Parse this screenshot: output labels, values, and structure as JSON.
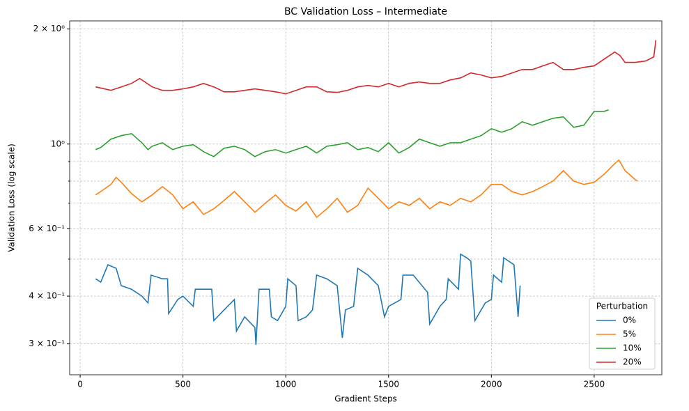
{
  "chart_data": {
    "type": "line",
    "title": "BC Validation Loss – Intermediate",
    "x_label": "Gradient Steps",
    "y_label": "Validation Loss (log scale)",
    "log_y": true,
    "grid": true,
    "legend_title": "Perturbation",
    "legend_position": "lower right",
    "xlim": [
      -51,
      2829
    ],
    "ylim": [
      0.249,
      2.1
    ],
    "xticks": [
      0,
      500,
      1000,
      1500,
      2000,
      2500
    ],
    "yticks": [
      {
        "value": 2,
        "label": "2 × 10⁰"
      },
      {
        "value": 1,
        "label": "10⁰"
      },
      {
        "value": 0.6,
        "label": "6 × 10⁻¹"
      },
      {
        "value": 0.4,
        "label": "4 × 10⁻¹"
      },
      {
        "value": 0.3,
        "label": "3 × 10⁻¹"
      }
    ],
    "yminor_ticks": [
      0.5,
      0.7,
      0.8,
      0.9
    ],
    "series": [
      {
        "name": "0%",
        "color": "#1f77b4",
        "x": [
          75,
          100,
          135,
          175,
          200,
          250,
          300,
          330,
          345,
          400,
          425,
          430,
          475,
          500,
          550,
          560,
          600,
          640,
          650,
          700,
          750,
          760,
          800,
          850,
          855,
          870,
          920,
          930,
          960,
          1000,
          1010,
          1050,
          1060,
          1100,
          1130,
          1150,
          1200,
          1250,
          1275,
          1290,
          1330,
          1350,
          1400,
          1450,
          1480,
          1500,
          1560,
          1570,
          1620,
          1690,
          1700,
          1750,
          1780,
          1790,
          1840,
          1850,
          1880,
          1900,
          1920,
          1970,
          2000,
          2010,
          2050,
          2060,
          2110,
          2130,
          2140
        ],
        "values": [
          0.444,
          0.435,
          0.483,
          0.473,
          0.426,
          0.417,
          0.4,
          0.384,
          0.454,
          0.444,
          0.444,
          0.36,
          0.392,
          0.4,
          0.376,
          0.417,
          0.417,
          0.417,
          0.345,
          0.368,
          0.392,
          0.324,
          0.353,
          0.331,
          0.298,
          0.417,
          0.417,
          0.353,
          0.345,
          0.376,
          0.444,
          0.426,
          0.345,
          0.353,
          0.368,
          0.454,
          0.444,
          0.426,
          0.311,
          0.368,
          0.376,
          0.473,
          0.454,
          0.426,
          0.353,
          0.376,
          0.392,
          0.454,
          0.454,
          0.409,
          0.338,
          0.376,
          0.392,
          0.444,
          0.417,
          0.515,
          0.504,
          0.494,
          0.345,
          0.384,
          0.392,
          0.454,
          0.435,
          0.504,
          0.483,
          0.353,
          0.426
        ]
      },
      {
        "name": "5%",
        "color": "#ff7f0e",
        "x": [
          75,
          100,
          150,
          175,
          200,
          250,
          300,
          350,
          400,
          450,
          500,
          550,
          600,
          650,
          700,
          750,
          800,
          850,
          900,
          950,
          1000,
          1050,
          1100,
          1150,
          1200,
          1250,
          1300,
          1350,
          1400,
          1450,
          1500,
          1550,
          1600,
          1650,
          1700,
          1750,
          1800,
          1850,
          1900,
          1950,
          2000,
          2050,
          2100,
          2150,
          2200,
          2250,
          2300,
          2350,
          2400,
          2450,
          2500,
          2550,
          2600,
          2620,
          2650,
          2700,
          2710
        ],
        "values": [
          0.736,
          0.751,
          0.784,
          0.818,
          0.794,
          0.742,
          0.706,
          0.736,
          0.774,
          0.736,
          0.677,
          0.706,
          0.654,
          0.677,
          0.712,
          0.751,
          0.706,
          0.663,
          0.7,
          0.736,
          0.691,
          0.668,
          0.706,
          0.643,
          0.677,
          0.721,
          0.663,
          0.691,
          0.767,
          0.721,
          0.677,
          0.706,
          0.691,
          0.721,
          0.677,
          0.706,
          0.691,
          0.721,
          0.706,
          0.736,
          0.784,
          0.784,
          0.751,
          0.736,
          0.751,
          0.774,
          0.8,
          0.852,
          0.8,
          0.784,
          0.794,
          0.835,
          0.889,
          0.908,
          0.852,
          0.807,
          0.8
        ]
      },
      {
        "name": "10%",
        "color": "#2ca02c",
        "x": [
          75,
          100,
          150,
          200,
          250,
          300,
          330,
          350,
          400,
          450,
          500,
          550,
          600,
          650,
          700,
          750,
          800,
          850,
          900,
          950,
          1000,
          1050,
          1100,
          1150,
          1200,
          1250,
          1300,
          1350,
          1400,
          1450,
          1500,
          1550,
          1600,
          1650,
          1700,
          1750,
          1800,
          1850,
          1900,
          1950,
          2000,
          2050,
          2100,
          2150,
          2200,
          2250,
          2300,
          2350,
          2400,
          2450,
          2500,
          2550,
          2570
        ],
        "values": [
          0.967,
          0.979,
          1.03,
          1.052,
          1.065,
          1.008,
          0.967,
          0.987,
          1.008,
          0.967,
          0.987,
          0.996,
          0.955,
          0.927,
          0.975,
          0.987,
          0.967,
          0.927,
          0.955,
          0.967,
          0.947,
          0.967,
          0.987,
          0.947,
          0.987,
          0.996,
          1.008,
          0.967,
          0.979,
          0.955,
          1.008,
          0.947,
          0.979,
          1.03,
          1.008,
          0.987,
          1.008,
          1.008,
          1.03,
          1.052,
          1.097,
          1.074,
          1.097,
          1.144,
          1.12,
          1.144,
          1.168,
          1.178,
          1.106,
          1.12,
          1.218,
          1.218,
          1.229
        ]
      },
      {
        "name": "20%",
        "color": "#d62728",
        "x": [
          75,
          150,
          200,
          250,
          290,
          350,
          400,
          450,
          500,
          550,
          600,
          650,
          700,
          750,
          800,
          850,
          900,
          950,
          1000,
          1050,
          1100,
          1150,
          1200,
          1250,
          1300,
          1350,
          1400,
          1450,
          1500,
          1550,
          1600,
          1650,
          1700,
          1750,
          1800,
          1850,
          1900,
          1950,
          2000,
          2050,
          2100,
          2150,
          2200,
          2250,
          2300,
          2350,
          2400,
          2450,
          2500,
          2550,
          2600,
          2625,
          2650,
          2700,
          2750,
          2790,
          2800
        ],
        "values": [
          1.411,
          1.382,
          1.411,
          1.441,
          1.484,
          1.411,
          1.382,
          1.382,
          1.394,
          1.411,
          1.441,
          1.411,
          1.37,
          1.37,
          1.382,
          1.394,
          1.382,
          1.37,
          1.353,
          1.382,
          1.411,
          1.411,
          1.37,
          1.365,
          1.382,
          1.411,
          1.423,
          1.411,
          1.441,
          1.411,
          1.441,
          1.453,
          1.441,
          1.441,
          1.472,
          1.49,
          1.535,
          1.516,
          1.49,
          1.503,
          1.535,
          1.567,
          1.567,
          1.601,
          1.635,
          1.567,
          1.567,
          1.587,
          1.601,
          1.67,
          1.741,
          1.705,
          1.635,
          1.635,
          1.649,
          1.691,
          1.87
        ]
      }
    ]
  }
}
